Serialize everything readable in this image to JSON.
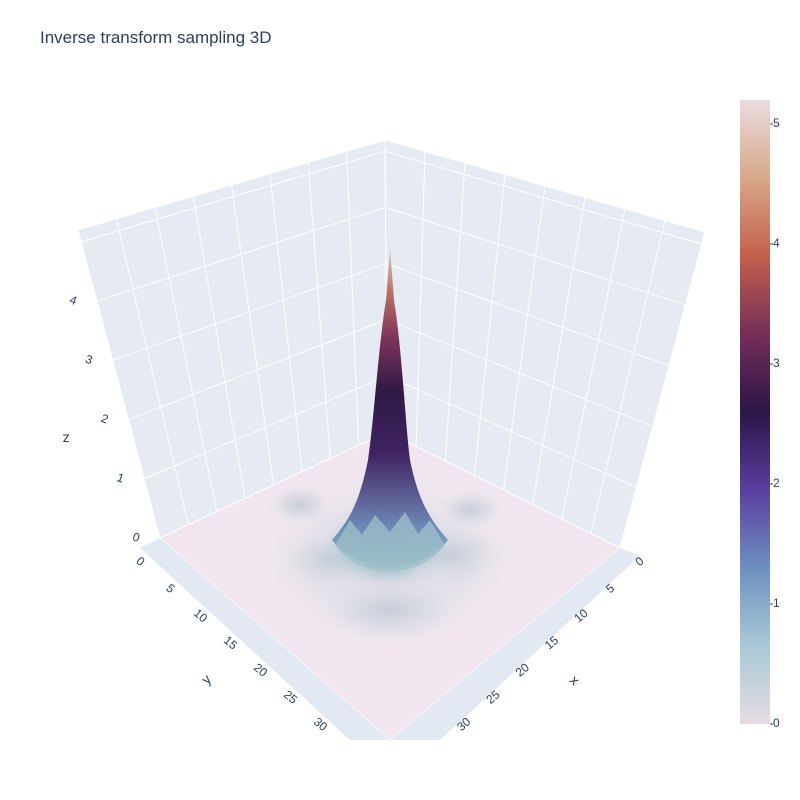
{
  "title": "Inverse transform sampling 3D",
  "chart_data": {
    "type": "surface",
    "title": "Inverse transform sampling 3D",
    "xlabel": "x",
    "ylabel": "y",
    "zlabel": "z",
    "xlim": [
      0,
      35
    ],
    "ylim": [
      0,
      35
    ],
    "zlim": [
      0,
      5.2
    ],
    "x_ticks": [
      "0",
      "5",
      "10",
      "15",
      "20",
      "25",
      "30"
    ],
    "y_ticks": [
      "0",
      "5",
      "10",
      "15",
      "20",
      "25",
      "30"
    ],
    "z_ticks": [
      "0",
      "1",
      "2",
      "3",
      "4"
    ],
    "peak": {
      "x": 17.5,
      "y": 17.5,
      "z": 5.2
    },
    "colorbar": {
      "ticks": [
        "0",
        "1",
        "2",
        "3",
        "4",
        "5"
      ],
      "range": [
        0,
        5.2
      ],
      "colorscale": [
        "#e6dbe2",
        "#a9c9d6",
        "#6f8fc0",
        "#5a3ea0",
        "#2b1647",
        "#762e58",
        "#c4604c",
        "#d8a88a",
        "#e9dcdf"
      ]
    },
    "grid": true
  }
}
